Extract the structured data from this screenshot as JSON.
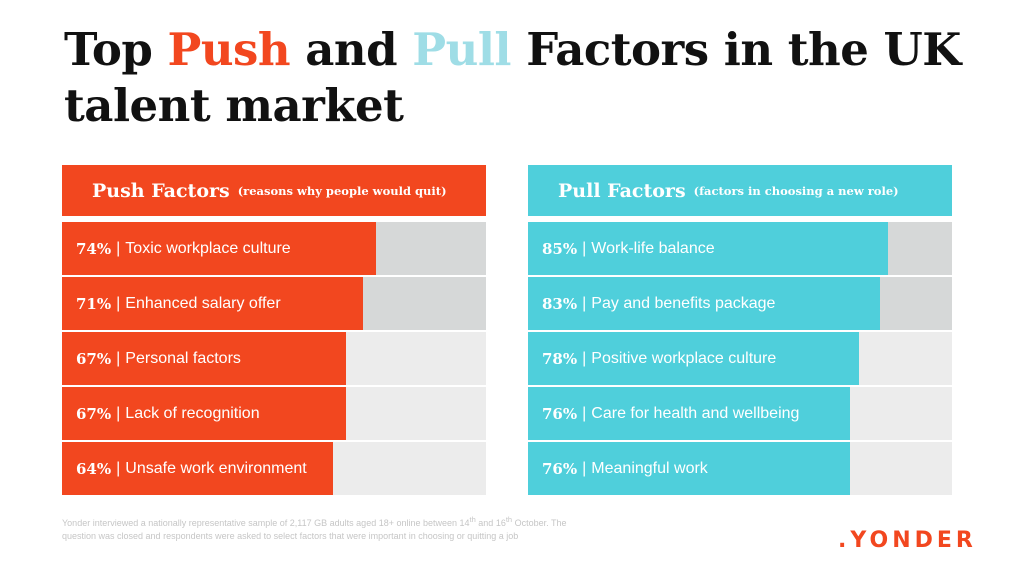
{
  "title": {
    "part1": "Top",
    "push_word": "Push",
    "part2": "and",
    "pull_word": "Pull",
    "part3": "Factors in the UK talent market"
  },
  "colors": {
    "push": "#f2471f",
    "pull": "#4fcfdb",
    "pull_title": "#9fdde6",
    "track_dark": "#d6d8d8",
    "track_light": "#ececec"
  },
  "chart_data": [
    {
      "type": "bar",
      "orientation": "horizontal",
      "title": "Push Factors",
      "subtitle": "(reasons why people would quit)",
      "unit": "%",
      "xlim": [
        0,
        100
      ],
      "categories": [
        "Toxic workplace culture",
        "Enhanced salary offer",
        "Personal factors",
        "Lack of recognition",
        "Unsafe work environment"
      ],
      "values": [
        74,
        71,
        67,
        67,
        64
      ],
      "value_labels": [
        "74%",
        "71%",
        "67%",
        "67%",
        "64%"
      ]
    },
    {
      "type": "bar",
      "orientation": "horizontal",
      "title": "Pull Factors",
      "subtitle": "(factors in choosing a new role)",
      "unit": "%",
      "xlim": [
        0,
        100
      ],
      "categories": [
        "Work-life balance",
        "Pay and benefits package",
        "Positive workplace culture",
        "Care for health and wellbeing",
        "Meaningful work"
      ],
      "values": [
        85,
        83,
        78,
        76,
        76
      ],
      "value_labels": [
        "85%",
        "83%",
        "78%",
        "76%",
        "76%"
      ]
    }
  ],
  "footnote": {
    "line1_a": "Yonder interviewed a nationally representative sample of 2,117 GB adults aged 18+ online between 14",
    "sup1": "th",
    "line1_b": " and 16",
    "sup2": "th",
    "line1_c": " October. The",
    "line2": "question was closed and respondents were asked to select factors that were important in choosing or quitting a job"
  },
  "brand": ".YONDER"
}
